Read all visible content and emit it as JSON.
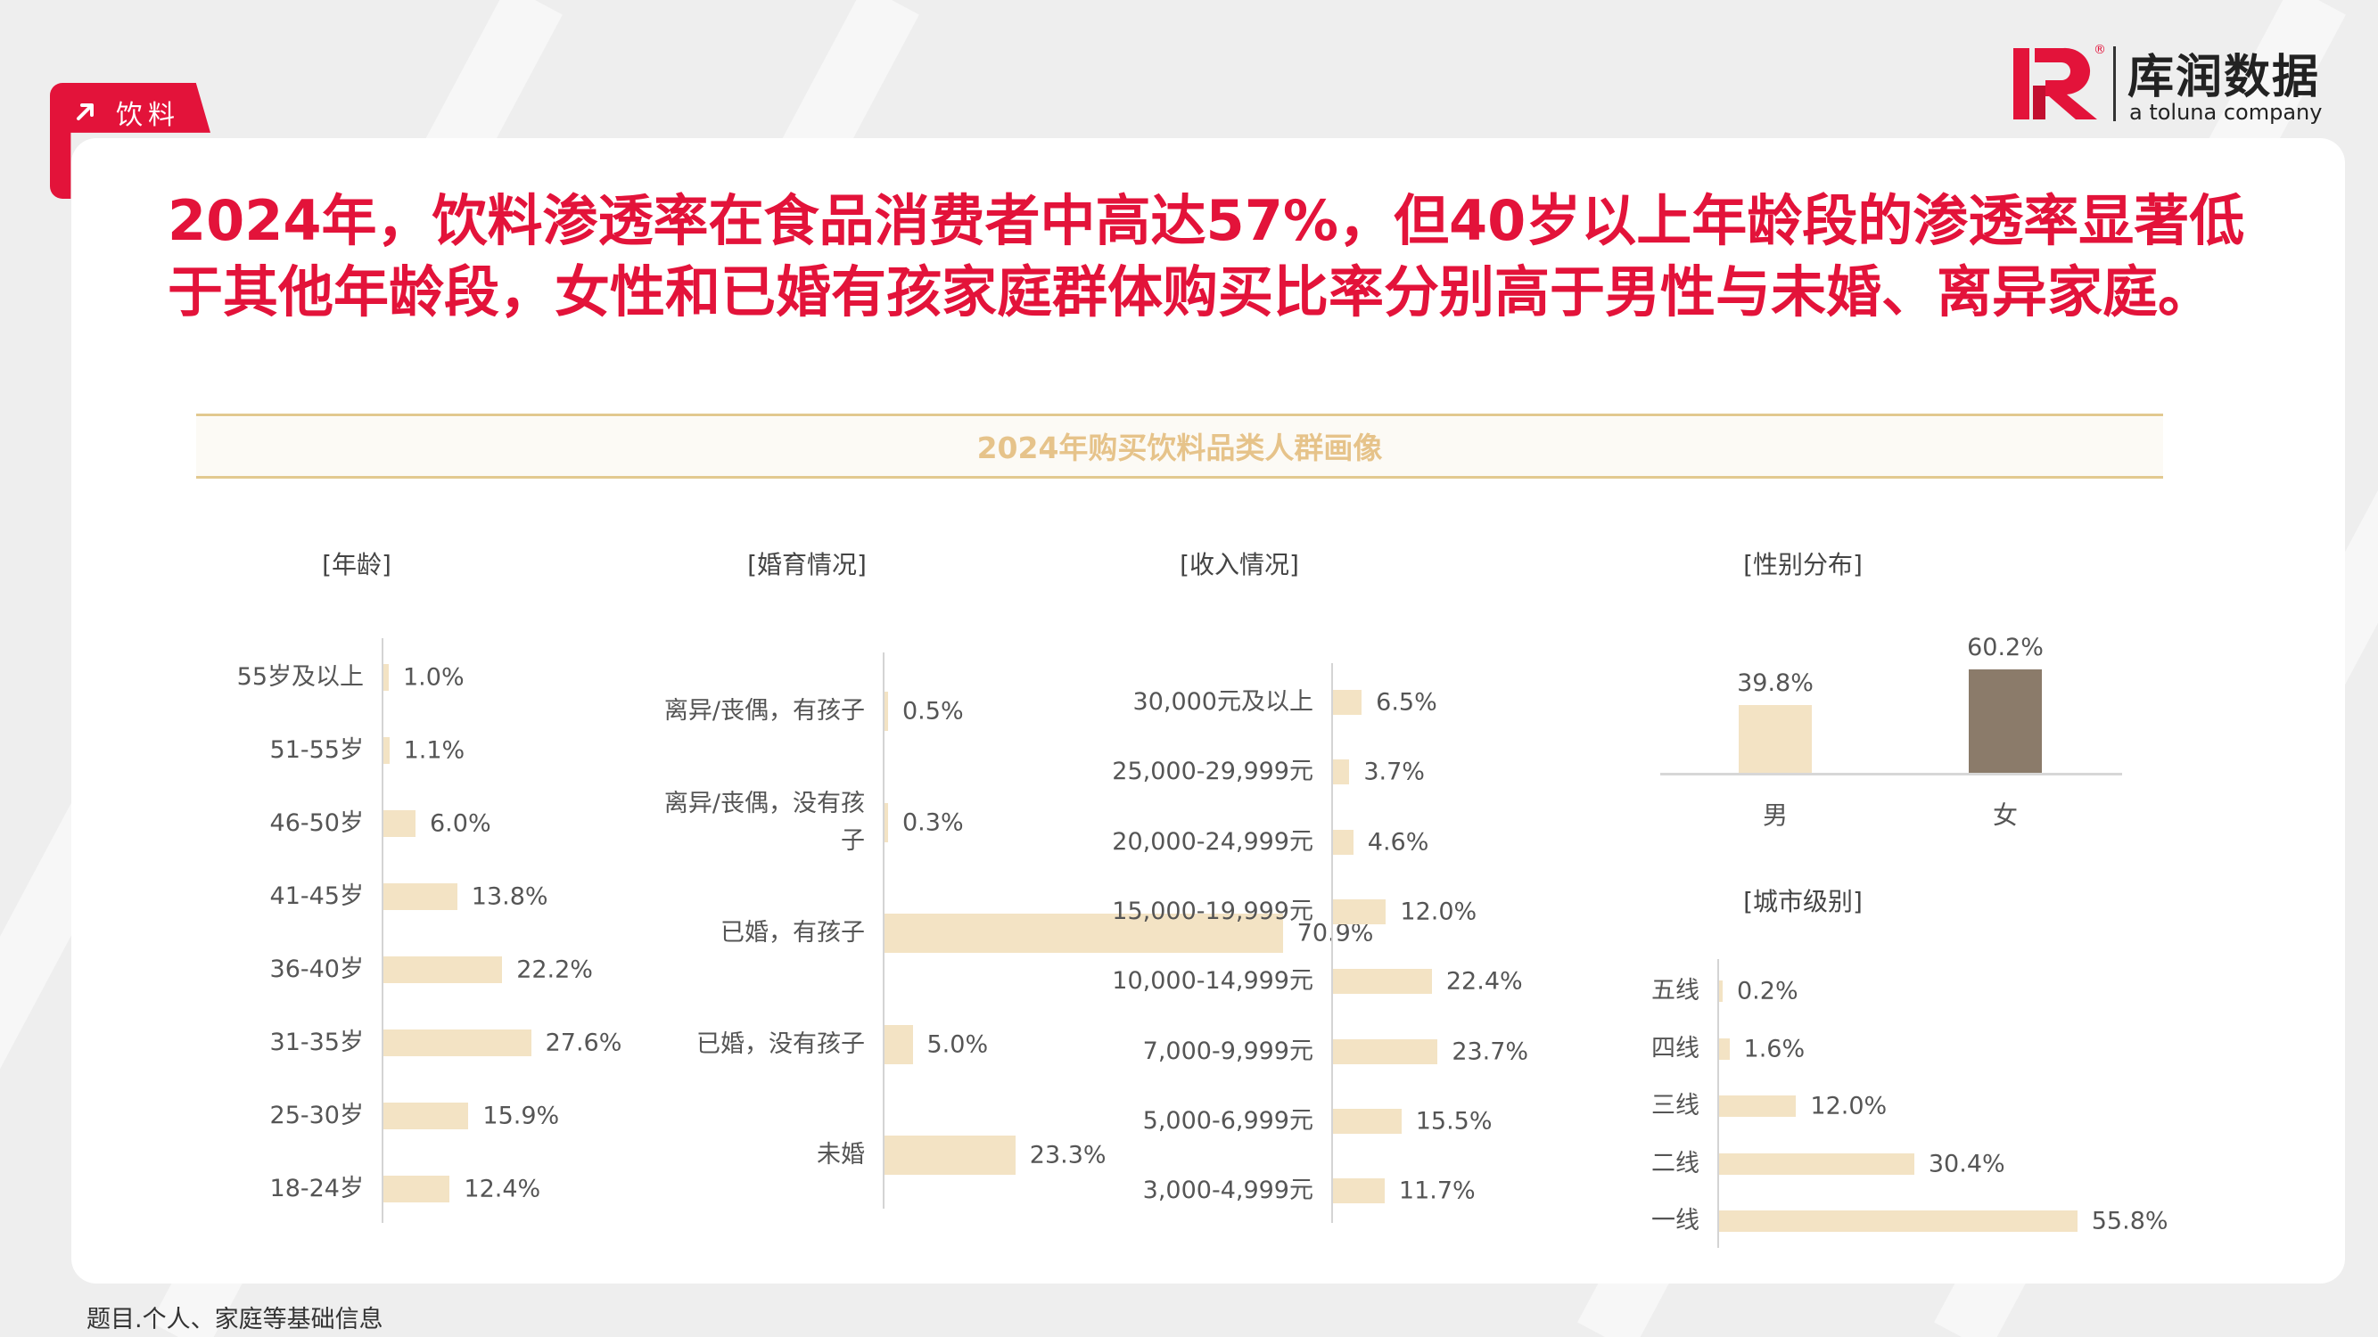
{
  "tag": {
    "label": "饮料"
  },
  "brand": {
    "name_cn": "库润数据",
    "tagline": "a toluna company",
    "registered_mark": "®"
  },
  "headline": "2024年，饮料渗透率在食品消费者中高达57%，但40岁以上年龄段的渗透率显著低于其他年龄段，女性和已婚有孩家庭群体购买比率分别高于男性与未婚、离异家庭。",
  "footnote": "题目.个人、家庭等基础信息",
  "colors": {
    "accent_red": "#e3133a",
    "bar_light": "#f3e3c4",
    "bar_dark": "#8b7b6a",
    "title_gold": "#e6c38a"
  },
  "chart_data": {
    "title": "2024年购买饮料品类人群画像",
    "charts": [
      {
        "id": "age",
        "type": "bar",
        "orientation": "horizontal",
        "title": "[年龄]",
        "categories": [
          "55岁及以上",
          "51-55岁",
          "46-50岁",
          "41-45岁",
          "36-40岁",
          "31-35岁",
          "25-30岁",
          "18-24岁"
        ],
        "values": [
          1.0,
          1.1,
          6.0,
          13.8,
          22.2,
          27.6,
          15.9,
          12.4
        ],
        "labels": [
          "1.0%",
          "1.1%",
          "6.0%",
          "13.8%",
          "22.2%",
          "27.6%",
          "15.9%",
          "12.4%"
        ]
      },
      {
        "id": "marital",
        "type": "bar",
        "orientation": "horizontal",
        "title": "[婚育情况]",
        "categories": [
          "离异/丧偶，有孩子",
          "离异/丧偶，没有孩子",
          "已婚，有孩子",
          "已婚，没有孩子",
          "未婚"
        ],
        "values": [
          0.5,
          0.3,
          70.9,
          5.0,
          23.3
        ],
        "labels": [
          "0.5%",
          "0.3%",
          "70.9%",
          "5.0%",
          "23.3%"
        ]
      },
      {
        "id": "income",
        "type": "bar",
        "orientation": "horizontal",
        "title": "[收入情况]",
        "categories": [
          "30,000元及以上",
          "25,000-29,999元",
          "20,000-24,999元",
          "15,000-19,999元",
          "10,000-14,999元",
          "7,000-9,999元",
          "5,000-6,999元",
          "3,000-4,999元"
        ],
        "values": [
          6.5,
          3.7,
          4.6,
          12.0,
          22.4,
          23.7,
          15.5,
          11.7
        ],
        "labels": [
          "6.5%",
          "3.7%",
          "4.6%",
          "12.0%",
          "22.4%",
          "23.7%",
          "15.5%",
          "11.7%"
        ]
      },
      {
        "id": "gender",
        "type": "bar",
        "orientation": "vertical",
        "title": "[性别分布]",
        "categories": [
          "男",
          "女"
        ],
        "values": [
          39.8,
          60.2
        ],
        "labels": [
          "39.8%",
          "60.2%"
        ],
        "colors": [
          "#f3e3c4",
          "#8b7b6a"
        ]
      },
      {
        "id": "city",
        "type": "bar",
        "orientation": "horizontal",
        "title": "[城市级别]",
        "categories": [
          "五线",
          "四线",
          "三线",
          "二线",
          "一线"
        ],
        "values": [
          0.2,
          1.6,
          12.0,
          30.4,
          55.8
        ],
        "labels": [
          "0.2%",
          "1.6%",
          "12.0%",
          "30.4%",
          "55.8%"
        ]
      }
    ]
  }
}
